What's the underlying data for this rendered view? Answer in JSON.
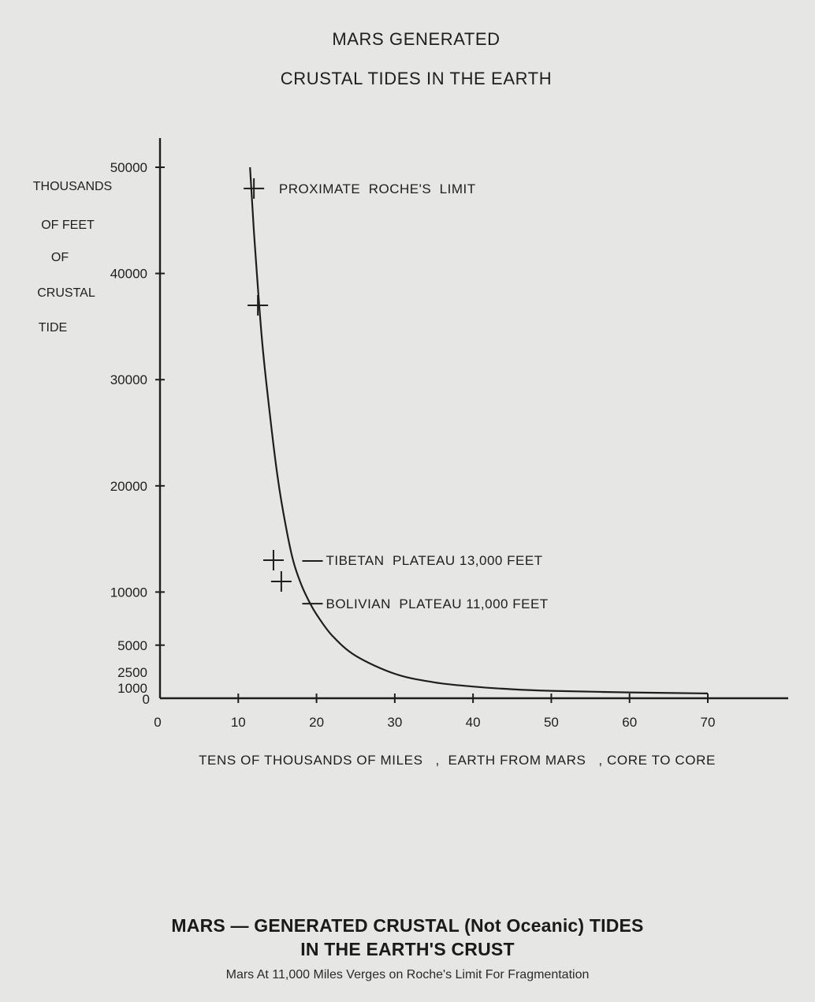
{
  "chart_data": {
    "type": "line",
    "title": [
      "MARS GENERATED",
      "CRUSTAL TIDES IN THE EARTH"
    ],
    "ylabel": [
      "THOUSANDS",
      "OF FEET",
      "OF",
      "CRUSTAL",
      "TIDE"
    ],
    "xlabel": "TENS OF THOUSANDS OF MILES   ,  EARTH FROM MARS   , CORE TO CORE",
    "xlim": [
      0,
      70
    ],
    "ylim": [
      0,
      50000
    ],
    "xticks": [
      "0",
      "10",
      "20",
      "30",
      "40",
      "50",
      "60",
      "70"
    ],
    "xtick_values": [
      0,
      10,
      20,
      30,
      40,
      50,
      60,
      70
    ],
    "yticks": [
      "0",
      "1000",
      "2500",
      "5000",
      "10000",
      "20000",
      "30000",
      "40000",
      "50000"
    ],
    "ytick_values": [
      0,
      1000,
      2500,
      5000,
      10000,
      20000,
      30000,
      40000,
      50000
    ],
    "series": [
      {
        "x": [
          11.5,
          12,
          13,
          14,
          15,
          16,
          17,
          18,
          19,
          20,
          22,
          25,
          30,
          35,
          40,
          45,
          50,
          60,
          70
        ],
        "values": [
          50000,
          44000,
          34000,
          27000,
          21000,
          16500,
          13000,
          10800,
          9200,
          7900,
          5900,
          4000,
          2300,
          1500,
          1100,
          850,
          700,
          550,
          450
        ]
      }
    ],
    "markers": [
      {
        "x": 12,
        "y": 48000
      },
      {
        "x": 12.5,
        "y": 37000
      },
      {
        "x": 14.5,
        "y": 13000
      },
      {
        "x": 15.5,
        "y": 11000
      }
    ],
    "annotations": [
      {
        "text": "PROXIMATE  ROCHE'S  LIMIT",
        "x": 15.2,
        "y": 48000,
        "leader": false
      },
      {
        "text": "TIBETAN  PLATEAU 13,000 FEET",
        "x": 21.2,
        "y": 13000,
        "leader": true
      },
      {
        "text": "BOLIVIAN  PLATEAU 11,000 FEET",
        "x": 21.2,
        "y": 9500,
        "leader": true
      }
    ]
  },
  "caption": {
    "line1": "MARS — GENERATED CRUSTAL (Not Oceanic) TIDES",
    "line2": "IN THE EARTH'S CRUST",
    "subtitle": "Mars At 11,000 Miles Verges on Roche's Limit For Fragmentation"
  }
}
